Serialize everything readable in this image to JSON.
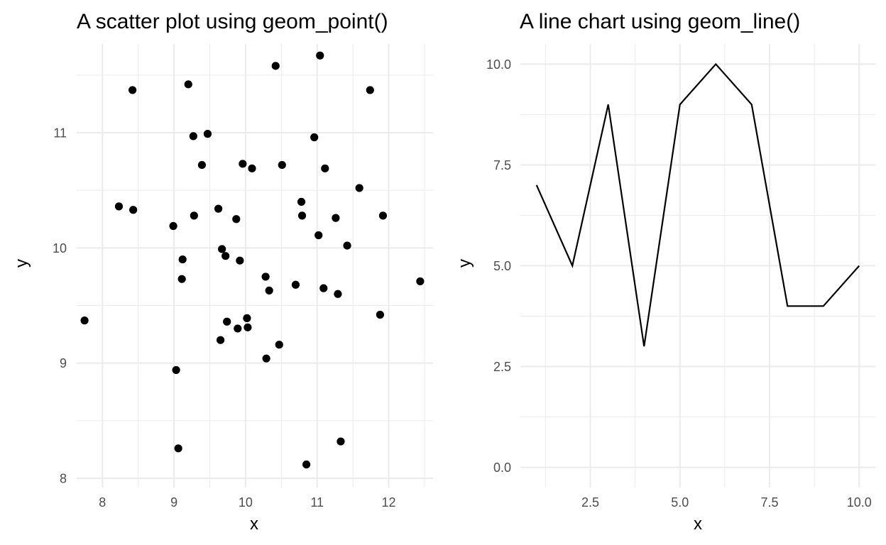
{
  "chart_data": [
    {
      "type": "scatter",
      "title": "A scatter plot using geom_point()",
      "xlabel": "x",
      "ylabel": "y",
      "xlim": [
        7.64,
        12.62
      ],
      "ylim": [
        7.92,
        11.77
      ],
      "xticks": [
        8,
        9,
        10,
        11,
        12
      ],
      "yticks": [
        8,
        9,
        10,
        11
      ],
      "xtick_labels": [
        "8",
        "9",
        "10",
        "11",
        "12"
      ],
      "ytick_labels": [
        "8",
        "9",
        "10",
        "11"
      ],
      "grid": true,
      "point_color": "#000000",
      "points": [
        [
          7.75,
          9.37
        ],
        [
          8.23,
          10.36
        ],
        [
          8.42,
          11.37
        ],
        [
          8.43,
          10.33
        ],
        [
          8.99,
          10.19
        ],
        [
          9.03,
          8.94
        ],
        [
          9.06,
          8.26
        ],
        [
          9.12,
          9.9
        ],
        [
          9.11,
          9.73
        ],
        [
          9.2,
          11.42
        ],
        [
          9.27,
          10.97
        ],
        [
          9.28,
          10.28
        ],
        [
          9.39,
          10.72
        ],
        [
          9.47,
          10.99
        ],
        [
          9.62,
          10.34
        ],
        [
          9.65,
          9.2
        ],
        [
          9.67,
          9.99
        ],
        [
          9.72,
          9.93
        ],
        [
          9.74,
          9.36
        ],
        [
          9.87,
          10.25
        ],
        [
          9.89,
          9.3
        ],
        [
          9.92,
          9.89
        ],
        [
          9.96,
          10.73
        ],
        [
          10.02,
          9.39
        ],
        [
          10.03,
          9.31
        ],
        [
          10.09,
          10.69
        ],
        [
          10.28,
          9.75
        ],
        [
          10.29,
          9.04
        ],
        [
          10.33,
          9.63
        ],
        [
          10.42,
          11.58
        ],
        [
          10.47,
          9.16
        ],
        [
          10.51,
          10.72
        ],
        [
          10.7,
          9.68
        ],
        [
          10.78,
          10.4
        ],
        [
          10.79,
          10.28
        ],
        [
          10.85,
          8.12
        ],
        [
          10.96,
          10.96
        ],
        [
          11.02,
          10.11
        ],
        [
          11.04,
          11.67
        ],
        [
          11.09,
          9.65
        ],
        [
          11.11,
          10.69
        ],
        [
          11.26,
          10.26
        ],
        [
          11.29,
          9.6
        ],
        [
          11.33,
          8.32
        ],
        [
          11.42,
          10.02
        ],
        [
          11.59,
          10.52
        ],
        [
          11.74,
          11.37
        ],
        [
          11.88,
          9.42
        ],
        [
          11.92,
          10.28
        ],
        [
          12.44,
          9.71
        ]
      ]
    },
    {
      "type": "line",
      "title": "A line chart using geom_line()",
      "xlabel": "x",
      "ylabel": "y",
      "xlim": [
        0.55,
        10.45
      ],
      "ylim": [
        -0.5,
        10.5
      ],
      "xticks": [
        2.5,
        5.0,
        7.5,
        10.0
      ],
      "yticks": [
        0.0,
        2.5,
        5.0,
        7.5,
        10.0
      ],
      "xtick_labels": [
        "2.5",
        "5.0",
        "7.5",
        "10.0"
      ],
      "ytick_labels": [
        "0.0",
        "2.5",
        "5.0",
        "7.5",
        "10.0"
      ],
      "grid": true,
      "line_color": "#000000",
      "x": [
        1,
        2,
        3,
        4,
        5,
        6,
        7,
        8,
        9,
        10
      ],
      "y": [
        7,
        5,
        9,
        3,
        9,
        10,
        9,
        4,
        4,
        5
      ]
    }
  ]
}
